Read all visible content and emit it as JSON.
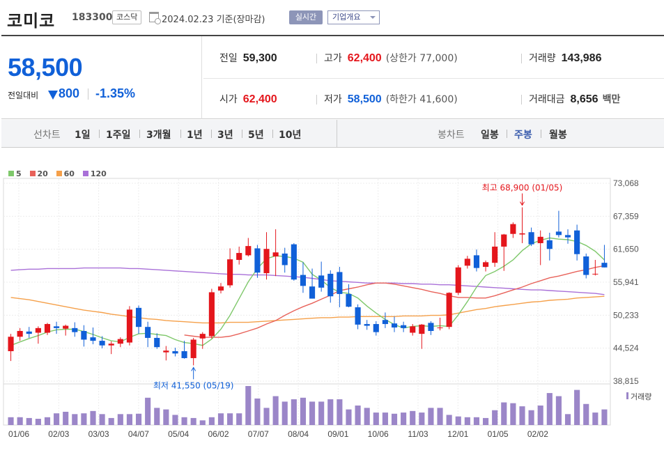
{
  "header": {
    "company": "코미코",
    "code": "183300",
    "market": "코스닥",
    "date_text": "2024.02.23 기준(장마감)",
    "realtime_label": "실시간",
    "overview_label": "기업개요"
  },
  "quote": {
    "price": "58,500",
    "change_label": "전일대비",
    "change_value": "800",
    "change_rate": "-1.35%",
    "prev_close_label": "전일",
    "prev_close": "59,300",
    "high_label": "고가",
    "high": "62,400",
    "upper_limit": "(상한가 77,000)",
    "volume_label": "거래량",
    "volume": "143,986",
    "open_label": "시가",
    "open": "62,400",
    "low_label": "저가",
    "low": "58,500",
    "lower_limit": "(하한가 41,600)",
    "amount_label": "거래대금",
    "amount": "8,656",
    "amount_unit": "백만"
  },
  "tabs": {
    "line_chart_label": "선차트",
    "periods": [
      "1일",
      "1주일",
      "3개월",
      "1년",
      "3년",
      "5년",
      "10년"
    ],
    "candle_chart_label": "봉차트",
    "candle_periods": [
      "일봉",
      "주봉",
      "월봉"
    ],
    "active_candle": "주봉"
  },
  "colors": {
    "up": "#e4161c",
    "down": "#1060d8",
    "ma5": "#7fc86b",
    "ma20": "#e8625a",
    "ma60": "#f5a04a",
    "ma120": "#a970d8",
    "volume": "#9b86c8"
  },
  "chart_data": {
    "type": "candlestick",
    "legend": [
      {
        "name": "5",
        "color": "#7fc86b"
      },
      {
        "name": "20",
        "color": "#e8625a"
      },
      {
        "name": "60",
        "color": "#f5a04a"
      },
      {
        "name": "120",
        "color": "#a970d8"
      }
    ],
    "y_ticks": [
      "73,068",
      "67,359",
      "61,650",
      "55,941",
      "50,233",
      "44,524",
      "38,815"
    ],
    "ylim": [
      38815,
      73068
    ],
    "x_ticks": [
      "01/06",
      "02/03",
      "03/03",
      "04/07",
      "05/04",
      "06/02",
      "07/07",
      "08/04",
      "09/01",
      "10/06",
      "11/03",
      "12/01",
      "01/05",
      "02/02"
    ],
    "volume_label": "거래량",
    "high_annotation": "최고 68,900 (01/05)",
    "low_annotation": "최저 41,550 (05/19)",
    "candles": [
      {
        "o": 44000,
        "h": 47000,
        "l": 42300,
        "c": 46500
      },
      {
        "o": 46500,
        "h": 48000,
        "l": 45800,
        "c": 47500
      },
      {
        "o": 47400,
        "h": 48200,
        "l": 46300,
        "c": 47000
      },
      {
        "o": 47200,
        "h": 48300,
        "l": 45300,
        "c": 48000
      },
      {
        "o": 47200,
        "h": 48900,
        "l": 46800,
        "c": 48700
      },
      {
        "o": 48300,
        "h": 49100,
        "l": 47000,
        "c": 48000
      },
      {
        "o": 47900,
        "h": 48600,
        "l": 46700,
        "c": 48400
      },
      {
        "o": 48000,
        "h": 49000,
        "l": 46500,
        "c": 47300
      },
      {
        "o": 47500,
        "h": 48500,
        "l": 44800,
        "c": 46000
      },
      {
        "o": 46400,
        "h": 48100,
        "l": 45200,
        "c": 45800
      },
      {
        "o": 45800,
        "h": 46600,
        "l": 44500,
        "c": 45000
      },
      {
        "o": 45000,
        "h": 45700,
        "l": 43500,
        "c": 45300
      },
      {
        "o": 45300,
        "h": 46400,
        "l": 44700,
        "c": 46100
      },
      {
        "o": 45500,
        "h": 51800,
        "l": 45000,
        "c": 51200
      },
      {
        "o": 51500,
        "h": 51900,
        "l": 47000,
        "c": 48200
      },
      {
        "o": 48200,
        "h": 49100,
        "l": 44700,
        "c": 46300
      },
      {
        "o": 46300,
        "h": 47100,
        "l": 44400,
        "c": 44700
      },
      {
        "o": 43800,
        "h": 44900,
        "l": 42400,
        "c": 44100
      },
      {
        "o": 44000,
        "h": 44600,
        "l": 43100,
        "c": 43600
      },
      {
        "o": 44000,
        "h": 45800,
        "l": 42700,
        "c": 42800
      },
      {
        "o": 42800,
        "h": 46300,
        "l": 41550,
        "c": 46000
      },
      {
        "o": 46200,
        "h": 47300,
        "l": 44400,
        "c": 47000
      },
      {
        "o": 46600,
        "h": 54800,
        "l": 46200,
        "c": 54200
      },
      {
        "o": 54500,
        "h": 55800,
        "l": 54000,
        "c": 55200
      },
      {
        "o": 55400,
        "h": 61800,
        "l": 55000,
        "c": 59900
      },
      {
        "o": 59800,
        "h": 62100,
        "l": 59000,
        "c": 61000
      },
      {
        "o": 60600,
        "h": 63600,
        "l": 60400,
        "c": 62200
      },
      {
        "o": 61800,
        "h": 62400,
        "l": 56700,
        "c": 57600
      },
      {
        "o": 57500,
        "h": 64600,
        "l": 56400,
        "c": 61700
      },
      {
        "o": 60400,
        "h": 65100,
        "l": 57000,
        "c": 61100
      },
      {
        "o": 60900,
        "h": 61900,
        "l": 57600,
        "c": 58900
      },
      {
        "o": 62500,
        "h": 62700,
        "l": 56200,
        "c": 56400
      },
      {
        "o": 57200,
        "h": 59400,
        "l": 54100,
        "c": 55300
      },
      {
        "o": 55200,
        "h": 58300,
        "l": 53100,
        "c": 53100
      },
      {
        "o": 57100,
        "h": 59500,
        "l": 54300,
        "c": 55000
      },
      {
        "o": 57400,
        "h": 58000,
        "l": 52400,
        "c": 53500
      },
      {
        "o": 57700,
        "h": 58600,
        "l": 51600,
        "c": 53900
      },
      {
        "o": 53900,
        "h": 55600,
        "l": 51600,
        "c": 51700
      },
      {
        "o": 51600,
        "h": 52100,
        "l": 47800,
        "c": 48600
      },
      {
        "o": 48700,
        "h": 49400,
        "l": 47700,
        "c": 48400
      },
      {
        "o": 48700,
        "h": 49200,
        "l": 46700,
        "c": 47300
      },
      {
        "o": 49400,
        "h": 50700,
        "l": 48000,
        "c": 48700
      },
      {
        "o": 48800,
        "h": 50000,
        "l": 47300,
        "c": 48100
      },
      {
        "o": 48500,
        "h": 49100,
        "l": 47300,
        "c": 48000
      },
      {
        "o": 47200,
        "h": 48700,
        "l": 46700,
        "c": 48300
      },
      {
        "o": 47000,
        "h": 48700,
        "l": 44400,
        "c": 48600
      },
      {
        "o": 48900,
        "h": 49200,
        "l": 46800,
        "c": 47500
      },
      {
        "o": 48100,
        "h": 49800,
        "l": 47600,
        "c": 48100
      },
      {
        "o": 48200,
        "h": 54200,
        "l": 47800,
        "c": 54100
      },
      {
        "o": 54100,
        "h": 58900,
        "l": 53700,
        "c": 58500
      },
      {
        "o": 58800,
        "h": 60500,
        "l": 58300,
        "c": 60000
      },
      {
        "o": 60600,
        "h": 61600,
        "l": 57800,
        "c": 58400
      },
      {
        "o": 58600,
        "h": 59700,
        "l": 57800,
        "c": 59400
      },
      {
        "o": 59300,
        "h": 64600,
        "l": 58600,
        "c": 62100
      },
      {
        "o": 62100,
        "h": 64300,
        "l": 57900,
        "c": 64200
      },
      {
        "o": 64300,
        "h": 66300,
        "l": 63600,
        "c": 66000
      },
      {
        "o": 64200,
        "h": 68900,
        "l": 62700,
        "c": 64400
      },
      {
        "o": 64600,
        "h": 65400,
        "l": 62200,
        "c": 62500
      },
      {
        "o": 62700,
        "h": 64900,
        "l": 58900,
        "c": 63800
      },
      {
        "o": 63200,
        "h": 64500,
        "l": 59700,
        "c": 61700
      },
      {
        "o": 64700,
        "h": 68300,
        "l": 63700,
        "c": 64100
      },
      {
        "o": 64100,
        "h": 65100,
        "l": 62600,
        "c": 63700
      },
      {
        "o": 64900,
        "h": 65900,
        "l": 59700,
        "c": 60800
      },
      {
        "o": 60400,
        "h": 60900,
        "l": 56600,
        "c": 57200
      },
      {
        "o": 57300,
        "h": 59800,
        "l": 57100,
        "c": 57400
      },
      {
        "o": 59300,
        "h": 62400,
        "l": 58500,
        "c": 58500
      }
    ],
    "ma5": [
      45000,
      45600,
      46200,
      46700,
      47300,
      47700,
      47800,
      47800,
      47400,
      46900,
      46300,
      45800,
      45600,
      46400,
      47000,
      47100,
      46900,
      46700,
      46000,
      45500,
      45300,
      45000,
      46100,
      47800,
      50200,
      53100,
      56000,
      58300,
      60000,
      60500,
      60400,
      60100,
      59400,
      57300,
      56300,
      55000,
      54200,
      54000,
      53200,
      51800,
      50600,
      49500,
      48600,
      48000,
      48300,
      48400,
      48300,
      48400,
      48300,
      50300,
      52600,
      55100,
      57100,
      57800,
      58700,
      59800,
      61400,
      62600,
      63200,
      63600,
      63400,
      63300,
      63000,
      62300,
      61300,
      59800
    ],
    "ma20": [
      null,
      null,
      null,
      null,
      null,
      null,
      null,
      null,
      null,
      null,
      null,
      null,
      null,
      null,
      null,
      null,
      null,
      null,
      null,
      46800,
      46600,
      46400,
      46400,
      46400,
      46600,
      47000,
      47500,
      48000,
      48700,
      49300,
      50200,
      51000,
      51700,
      52300,
      53000,
      53700,
      54500,
      54800,
      55100,
      55500,
      55800,
      55800,
      55600,
      55300,
      55000,
      54700,
      54300,
      54000,
      53600,
      53300,
      53300,
      53200,
      53200,
      53600,
      54100,
      54600,
      55100,
      55700,
      56200,
      56700,
      57000,
      57400,
      57800,
      58100,
      58500,
      58800
    ],
    "ma60": [
      53300,
      53100,
      52900,
      52600,
      52300,
      52000,
      51700,
      51400,
      51100,
      50900,
      50700,
      50400,
      50200,
      50000,
      49800,
      49600,
      49500,
      49300,
      49200,
      49100,
      49000,
      48900,
      48900,
      48900,
      49000,
      49000,
      49000,
      49100,
      49200,
      49300,
      49400,
      49500,
      49600,
      49700,
      49800,
      49800,
      49900,
      49900,
      50000,
      50000,
      50000,
      50000,
      50000,
      50100,
      50100,
      50100,
      50200,
      50200,
      50300,
      50600,
      50900,
      51200,
      51400,
      51700,
      51900,
      52100,
      52300,
      52500,
      52600,
      52800,
      52900,
      53000,
      53200,
      53300,
      53400,
      53500
    ],
    "ma120": [
      58000,
      58100,
      58200,
      58200,
      58300,
      58300,
      58300,
      58300,
      58400,
      58400,
      58400,
      58400,
      58400,
      58300,
      58300,
      58200,
      58100,
      58000,
      57900,
      57800,
      57700,
      57600,
      57500,
      57400,
      57300,
      57300,
      57200,
      57200,
      57200,
      57100,
      57000,
      56900,
      56800,
      56600,
      56400,
      56200,
      56100,
      56000,
      55900,
      55800,
      55800,
      55800,
      55800,
      55700,
      55700,
      55600,
      55600,
      55500,
      55500,
      55400,
      55300,
      55200,
      55100,
      55000,
      54900,
      54800,
      54700,
      54600,
      54600,
      54500,
      54400,
      54300,
      54200,
      54100,
      54000,
      53800
    ],
    "volumes": [
      20,
      20,
      18,
      16,
      20,
      30,
      34,
      28,
      30,
      36,
      28,
      18,
      28,
      28,
      29,
      70,
      44,
      40,
      26,
      20,
      18,
      12,
      20,
      30,
      30,
      30,
      100,
      68,
      44,
      74,
      60,
      66,
      70,
      60,
      60,
      66,
      66,
      40,
      50,
      44,
      32,
      32,
      29,
      32,
      36,
      32,
      44,
      44,
      26,
      22,
      20,
      20,
      18,
      38,
      58,
      56,
      48,
      38,
      50,
      82,
      74,
      28,
      90,
      54,
      32,
      40
    ]
  }
}
